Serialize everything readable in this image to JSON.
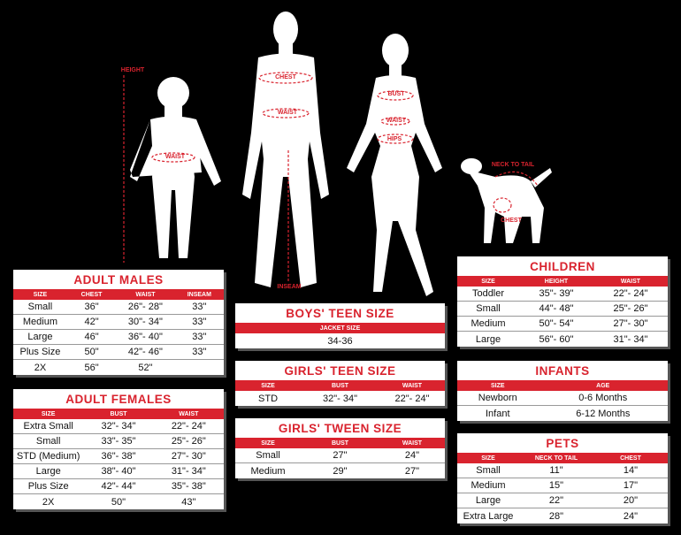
{
  "figures": {
    "child": [
      "HEIGHT",
      "WAIST"
    ],
    "man": [
      "CHEST",
      "WAIST",
      "INSEAM"
    ],
    "woman": [
      "BUST",
      "WAIST",
      "HIPS"
    ],
    "dog": [
      "NECK TO TAIL",
      "CHEST"
    ]
  },
  "tables": {
    "adult_males": {
      "title": "ADULT MALES",
      "headers": [
        "SIZE",
        "CHEST",
        "WAIST",
        "INSEAM"
      ],
      "rows": [
        [
          "Small",
          "36\"",
          "26\"- 28\"",
          "33\""
        ],
        [
          "Medium",
          "42\"",
          "30\"- 34\"",
          "33\""
        ],
        [
          "Large",
          "46\"",
          "36\"- 40\"",
          "33\""
        ],
        [
          "Plus Size",
          "50\"",
          "42\"- 46\"",
          "33\""
        ],
        [
          "2X",
          "56\"",
          "52\""
        ]
      ]
    },
    "adult_females": {
      "title": "ADULT FEMALES",
      "headers": [
        "SIZE",
        "BUST",
        "WAIST"
      ],
      "rows": [
        [
          "Extra Small",
          "32\"- 34\"",
          "22\"- 24\""
        ],
        [
          "Small",
          "33\"- 35\"",
          "25\"- 26\""
        ],
        [
          "STD (Medium)",
          "36\"- 38\"",
          "27\"- 30\""
        ],
        [
          "Large",
          "38\"- 40\"",
          "31\"- 34\""
        ],
        [
          "Plus Size",
          "42\"- 44\"",
          "35\"- 38\""
        ],
        [
          "2X",
          "50\"",
          "43\""
        ]
      ]
    },
    "boys_teen": {
      "title": "BOYS' TEEN SIZE",
      "headers": [
        "JACKET SIZE"
      ],
      "rows": [
        [
          "34-36"
        ]
      ]
    },
    "girls_teen": {
      "title": "GIRLS' TEEN SIZE",
      "headers": [
        "SIZE",
        "BUST",
        "WAIST"
      ],
      "rows": [
        [
          "STD",
          "32\"- 34\"",
          "22\"- 24\""
        ]
      ]
    },
    "girls_tween": {
      "title": "GIRLS' TWEEN SIZE",
      "headers": [
        "SIZE",
        "BUST",
        "WAIST"
      ],
      "rows": [
        [
          "Small",
          "27\"",
          "24\""
        ],
        [
          "Medium",
          "29\"",
          "27\""
        ]
      ]
    },
    "children": {
      "title": "CHILDREN",
      "headers": [
        "SIZE",
        "HEIGHT",
        "WAIST"
      ],
      "rows": [
        [
          "Toddler",
          "35\"- 39\"",
          "22\"- 24\""
        ],
        [
          "Small",
          "44\"- 48\"",
          "25\"- 26\""
        ],
        [
          "Medium",
          "50\"- 54\"",
          "27\"- 30\""
        ],
        [
          "Large",
          "56\"- 60\"",
          "31\"- 34\""
        ]
      ]
    },
    "infants": {
      "title": "INFANTS",
      "headers": [
        "SIZE",
        "AGE"
      ],
      "rows": [
        [
          "Newborn",
          "0-6 Months"
        ],
        [
          "Infant",
          "6-12 Months"
        ]
      ]
    },
    "pets": {
      "title": "PETS",
      "headers": [
        "SIZE",
        "NECK TO TAIL",
        "CHEST"
      ],
      "rows": [
        [
          "Small",
          "11\"",
          "14\""
        ],
        [
          "Medium",
          "15\"",
          "17\""
        ],
        [
          "Large",
          "22\"",
          "20\""
        ],
        [
          "Extra Large",
          "28\"",
          "24\""
        ]
      ]
    }
  }
}
